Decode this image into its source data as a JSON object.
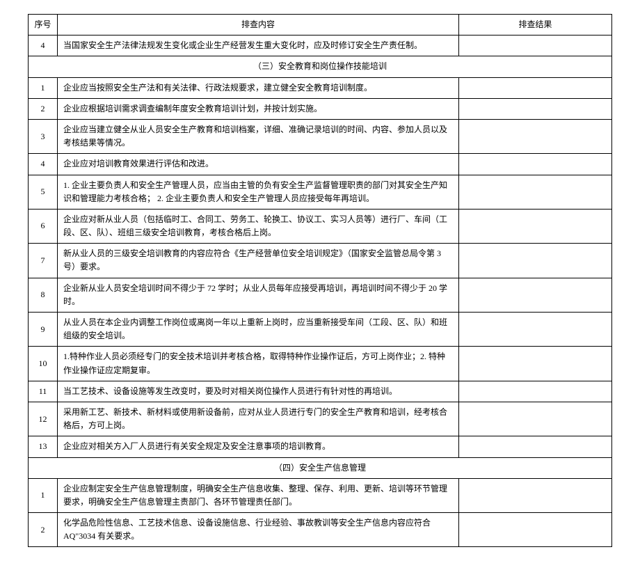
{
  "headers": {
    "num": "序号",
    "content": "排查内容",
    "result": "排查结果"
  },
  "preSection": {
    "rows": [
      {
        "num": "4",
        "content": "当国家安全生产法律法规发生变化或企业生产经营发生重大变化时，应及时修订安全生产责任制。",
        "result": ""
      }
    ]
  },
  "section3": {
    "title": "（三）安全教育和岗位操作技能培训",
    "rows": [
      {
        "num": "1",
        "content": "企业应当按照安全生产法和有关法律、行政法规要求，建立健全安全教育培训制度。",
        "result": ""
      },
      {
        "num": "2",
        "content": "企业应根据培训需求调查编制年度安全教育培训计划，并按计划实施。",
        "result": ""
      },
      {
        "num": "3",
        "content": "企业应当建立健全从业人员安全生产教育和培训档案，详细、准确记录培训的时间、内容、参加人员以及考核结果等情况。",
        "result": ""
      },
      {
        "num": "4",
        "content": "企业应对培训教育效果进行评估和改进。",
        "result": ""
      },
      {
        "num": "5",
        "content": "1. 企业主要负责人和安全生产管理人员，应当由主管的负有安全生产监督管理职责的部门对其安全生产知识和管理能力考核合格；\n2. 企业主要负责人和安全生产管理人员应接受每年再培训。",
        "result": ""
      },
      {
        "num": "6",
        "content": "企业应对新从业人员（包括临时工、合同工、劳务工、轮换工、协议工、实习人员等）进行厂、车间（工段、区、队）、班组三级安全培训教育，考核合格后上岗。",
        "result": ""
      },
      {
        "num": "7",
        "content": "新从业人员的三级安全培训教育的内容应符合《生产经营单位安全培训规定》（国家安全监管总局令第 3 号）要求。",
        "result": ""
      },
      {
        "num": "8",
        "content": "企业新从业人员安全培训时间不得少于 72 学时；从业人员每年应接受再培训，再培训时间不得少于 20 学时。",
        "result": ""
      },
      {
        "num": "9",
        "content": "从业人员在本企业内调整工作岗位或离岗一年以上重新上岗时，应当重新接受车间（工段、区、队）和班组级的安全培训。",
        "result": ""
      },
      {
        "num": "10",
        "content": "1.特种作业人员必须经专门的安全技术培训并考核合格，取得特种作业操作证后，方可上岗作业；2. 特种作业操作证应定期复审。",
        "result": ""
      },
      {
        "num": "11",
        "content": "当工艺技术、设备设施等发生改变时，要及时对相关岗位操作人员进行有针对性的再培训。",
        "result": ""
      },
      {
        "num": "12",
        "content": "采用新工艺、新技术、新材料或使用新设备前，应对从业人员进行专门的安全生产教育和培训，经考核合格后，方可上岗。",
        "result": ""
      },
      {
        "num": "13",
        "content": "企业应对相关方入厂人员进行有关安全规定及安全注意事项的培训教育。",
        "result": ""
      }
    ]
  },
  "section4": {
    "title": "（四）安全生产信息管理",
    "rows": [
      {
        "num": "1",
        "content": "企业应制定安全生产信息管理制度，明确安全生产信息收集、整理、保存、利用、更新、培训等环节管理要求，明确安全生产信息管理主责部门、各环节管理责任部门。",
        "result": ""
      },
      {
        "num": "2",
        "content": "化学品危险性信息、工艺技术信息、设备设施信息、行业经验、事故教训等安全生产信息内容应符合 AQ\"3034 有关要求。",
        "result": ""
      }
    ]
  }
}
